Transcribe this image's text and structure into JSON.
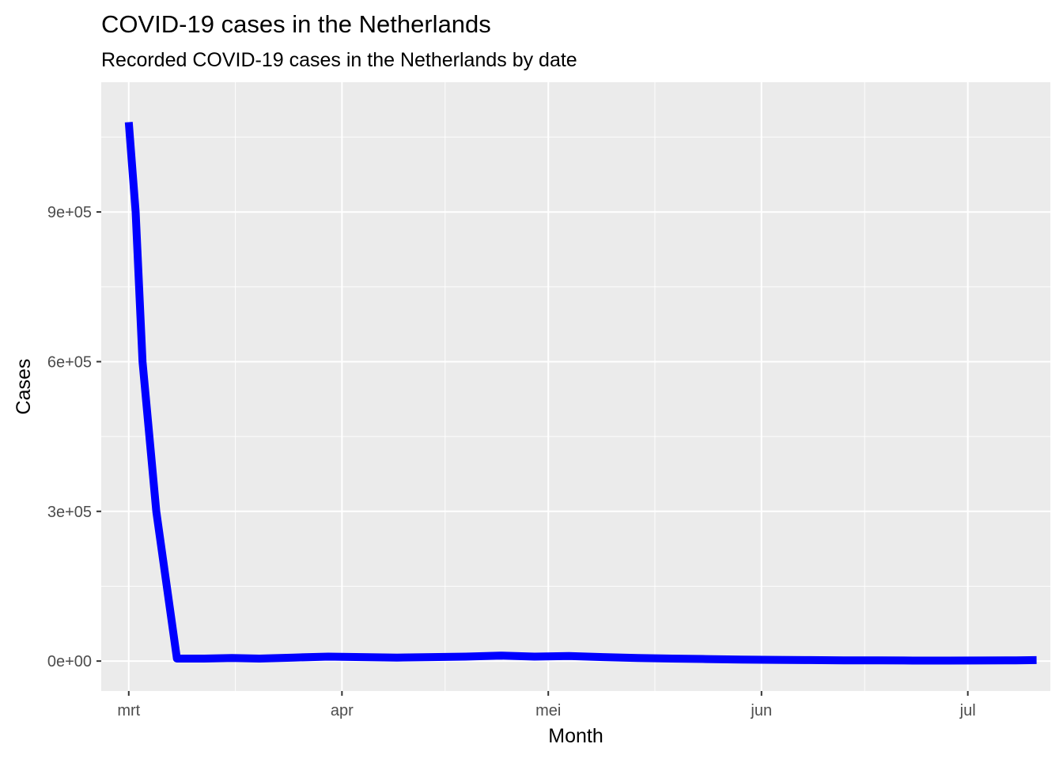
{
  "chart_data": {
    "type": "line",
    "title": "COVID-19 cases in the Netherlands",
    "subtitle": "Recorded COVID-19 cases in the Netherlands by date",
    "xlabel": "Month",
    "ylabel": "Cases",
    "x_axis": {
      "type": "date",
      "range": [
        "2020-02-26",
        "2020-07-13"
      ],
      "ticks": [
        {
          "date": "2020-03-01",
          "label": "mrt"
        },
        {
          "date": "2020-04-01",
          "label": "apr"
        },
        {
          "date": "2020-05-01",
          "label": "mei"
        },
        {
          "date": "2020-06-01",
          "label": "jun"
        },
        {
          "date": "2020-07-01",
          "label": "jul"
        }
      ]
    },
    "y_axis": {
      "range": [
        -60000,
        1160000
      ],
      "ticks": [
        {
          "value": 0,
          "label": "0e+00"
        },
        {
          "value": 300000,
          "label": "3e+05"
        },
        {
          "value": 600000,
          "label": "6e+05"
        },
        {
          "value": 900000,
          "label": "9e+05"
        }
      ]
    },
    "grid": true,
    "line_color": "#0000ff",
    "series": [
      {
        "x": [
          "2020-03-01",
          "2020-03-02",
          "2020-03-03",
          "2020-03-05",
          "2020-03-08",
          "2020-03-12",
          "2020-03-16",
          "2020-03-20",
          "2020-03-25",
          "2020-03-30",
          "2020-04-04",
          "2020-04-09",
          "2020-04-14",
          "2020-04-19",
          "2020-04-24",
          "2020-04-29",
          "2020-05-04",
          "2020-05-09",
          "2020-05-14",
          "2020-05-19",
          "2020-05-24",
          "2020-05-29",
          "2020-06-03",
          "2020-06-08",
          "2020-06-13",
          "2020-06-18",
          "2020-06-23",
          "2020-06-28",
          "2020-07-03",
          "2020-07-08",
          "2020-07-11"
        ],
        "y": [
          1080000,
          900000,
          600000,
          300000,
          5000,
          5000,
          6000,
          5000,
          7000,
          9000,
          8000,
          7000,
          8000,
          9000,
          11000,
          9000,
          10000,
          8000,
          6000,
          5000,
          4000,
          3000,
          2500,
          2000,
          1500,
          1500,
          1000,
          1000,
          1200,
          1500,
          2000
        ]
      }
    ]
  }
}
